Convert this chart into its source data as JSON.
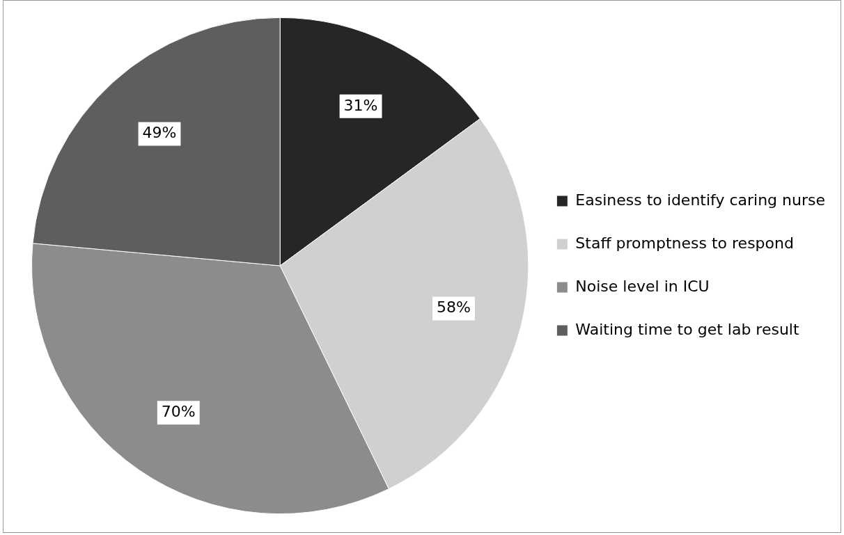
{
  "chart_data": {
    "type": "pie",
    "categories": [
      "Easiness to identify caring nurse",
      "Staff promptness to respond",
      "Noise level in ICU",
      "Waiting time to get lab result"
    ],
    "values": [
      31,
      58,
      70,
      49
    ],
    "colors": [
      "#262626",
      "#d0d0d0",
      "#8c8c8c",
      "#5e5e5e"
    ],
    "value_labels": [
      "31%",
      "58%",
      "70%",
      "49%"
    ],
    "legend": "right"
  }
}
